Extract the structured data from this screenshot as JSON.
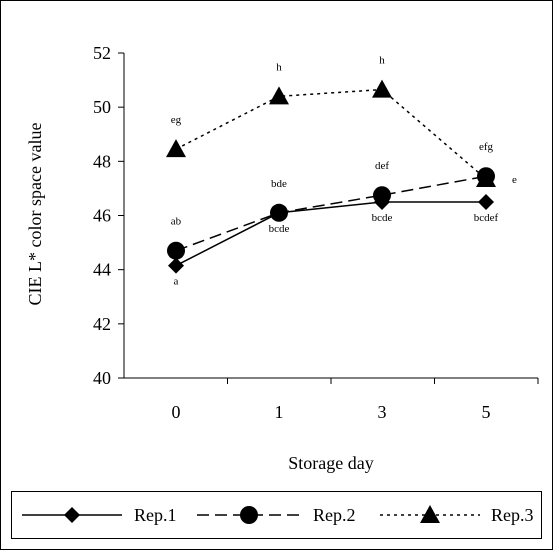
{
  "chart_data": {
    "type": "line",
    "title": "",
    "xlabel": "Storage day",
    "ylabel": "CIE L* color space value",
    "categories": [
      "0",
      "1",
      "3",
      "5"
    ],
    "ylim": [
      40,
      52
    ],
    "yticks": [
      40,
      42,
      44,
      46,
      48,
      50,
      52
    ],
    "grid": false,
    "legend_position": "bottom",
    "series": [
      {
        "name": "Rep.1",
        "values": [
          44.15,
          46.1,
          46.5,
          46.5
        ],
        "marker": "diamond",
        "dash": "solid",
        "color": "#000000",
        "annotations": [
          {
            "text": "a",
            "pos": "below"
          },
          {
            "text": "bcde",
            "pos": "below"
          },
          {
            "text": "bcde",
            "pos": "below"
          },
          {
            "text": "bcdef",
            "pos": "below"
          }
        ]
      },
      {
        "name": "Rep.2",
        "values": [
          44.7,
          46.1,
          46.75,
          47.45
        ],
        "marker": "circle",
        "dash": "dashed",
        "color": "#000000",
        "annotations": [
          {
            "text": "ab",
            "pos": "above"
          },
          {
            "text": "bde",
            "pos": "above"
          },
          {
            "text": "def",
            "pos": "above"
          },
          {
            "text": "efg",
            "pos": "above"
          }
        ]
      },
      {
        "name": "Rep.3",
        "values": [
          48.45,
          50.4,
          50.65,
          47.35
        ],
        "marker": "triangle",
        "dash": "dotted",
        "color": "#000000",
        "annotations": [
          {
            "text": "eg",
            "pos": "above"
          },
          {
            "text": "h",
            "pos": "above"
          },
          {
            "text": "h",
            "pos": "above"
          },
          {
            "text": "e",
            "pos": "right"
          }
        ]
      }
    ]
  }
}
